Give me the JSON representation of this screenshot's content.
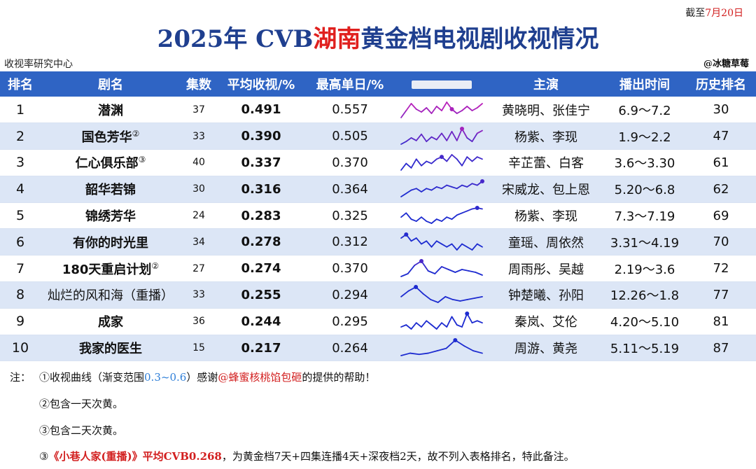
{
  "header": {
    "cutoff_prefix": "截至",
    "cutoff_date": "7月20日",
    "title_pre": "2025年 CVB",
    "title_highlight": "湖南",
    "title_post": "黄金档电视剧收视情况",
    "source": "收视率研究中心",
    "credit": "@冰糖草莓"
  },
  "table": {
    "headers": [
      "排名",
      "剧名",
      "集数",
      "平均收视/%",
      "最高单日/%",
      "",
      "主演",
      "播出时间",
      "历史排名"
    ],
    "rows": [
      {
        "rank": "1",
        "name": "潜渊",
        "sup": "",
        "episodes": "37",
        "avg": "0.491",
        "peak": "0.557",
        "cast": "黄晓明、张佳宁",
        "period": "6.9～7.2",
        "history": "30",
        "trend": [
          0.45,
          0.5,
          0.55,
          0.51,
          0.49,
          0.52,
          0.48,
          0.53,
          0.5,
          0.56,
          0.51,
          0.48,
          0.5,
          0.53,
          0.5,
          0.52,
          0.55
        ],
        "marker": 10
      },
      {
        "rank": "2",
        "name": "国色芳华",
        "sup": "②",
        "episodes": "33",
        "avg": "0.390",
        "peak": "0.505",
        "cast": "杨紫、李现",
        "period": "1.9～2.2",
        "history": "47",
        "trend": [
          0.33,
          0.36,
          0.4,
          0.37,
          0.44,
          0.36,
          0.41,
          0.38,
          0.45,
          0.37,
          0.47,
          0.37,
          0.5,
          0.4,
          0.36,
          0.45,
          0.48
        ],
        "marker": 12
      },
      {
        "rank": "3",
        "name": "仁心俱乐部",
        "sup": "③",
        "episodes": "40",
        "avg": "0.337",
        "peak": "0.370",
        "cast": "辛芷蕾、白客",
        "period": "3.6～3.30",
        "history": "61",
        "trend": [
          0.3,
          0.33,
          0.31,
          0.35,
          0.32,
          0.34,
          0.33,
          0.35,
          0.36,
          0.34,
          0.37,
          0.35,
          0.32,
          0.36,
          0.34,
          0.36,
          0.35
        ],
        "marker": 8
      },
      {
        "rank": "4",
        "name": "韶华若锦",
        "sup": "",
        "episodes": "30",
        "avg": "0.316",
        "peak": "0.364",
        "cast": "宋威龙、包上恩",
        "period": "5.20～6.8",
        "history": "62",
        "trend": [
          0.27,
          0.29,
          0.31,
          0.32,
          0.3,
          0.32,
          0.31,
          0.33,
          0.32,
          0.34,
          0.33,
          0.32,
          0.34,
          0.33,
          0.35,
          0.34,
          0.364
        ],
        "marker": 16
      },
      {
        "rank": "5",
        "name": "锦绣芳华",
        "sup": "",
        "episodes": "24",
        "avg": "0.283",
        "peak": "0.325",
        "cast": "杨紫、李现",
        "period": "7.3～7.19",
        "history": "69",
        "trend": [
          0.28,
          0.3,
          0.27,
          0.26,
          0.28,
          0.26,
          0.25,
          0.27,
          0.26,
          0.28,
          0.27,
          0.29,
          0.3,
          0.31,
          0.32,
          0.325,
          0.32
        ],
        "marker": 15
      },
      {
        "rank": "6",
        "name": "有你的时光里",
        "sup": "",
        "episodes": "34",
        "avg": "0.278",
        "peak": "0.312",
        "cast": "童瑶、周依然",
        "period": "3.31～4.19",
        "history": "70",
        "trend": [
          0.3,
          0.312,
          0.29,
          0.3,
          0.28,
          0.29,
          0.27,
          0.29,
          0.28,
          0.27,
          0.28,
          0.26,
          0.28,
          0.27,
          0.26,
          0.28,
          0.27
        ],
        "marker": 1
      },
      {
        "rank": "7",
        "name": "180天重启计划",
        "sup": "②",
        "episodes": "27",
        "avg": "0.274",
        "peak": "0.370",
        "cast": "周雨彤、吴越",
        "period": "2.19～3.6",
        "history": "72",
        "trend": [
          0.26,
          0.28,
          0.34,
          0.37,
          0.3,
          0.28,
          0.33,
          0.31,
          0.29,
          0.31,
          0.3,
          0.29,
          0.27
        ],
        "marker": 3
      },
      {
        "rank": "8",
        "name": "灿烂的风和海（重播）",
        "sup": "",
        "episodes": "33",
        "avg": "0.255",
        "peak": "0.294",
        "cast": "钟楚曦、孙阳",
        "period": "12.26～1.8",
        "history": "77",
        "trend": [
          0.26,
          0.28,
          0.294,
          0.27,
          0.25,
          0.24,
          0.26,
          0.25,
          0.245,
          0.25,
          0.255,
          0.26
        ],
        "marker": 2
      },
      {
        "rank": "9",
        "name": "成家",
        "sup": "",
        "episodes": "36",
        "avg": "0.244",
        "peak": "0.295",
        "cast": "秦岚、艾伦",
        "period": "4.20～5.10",
        "history": "81",
        "trend": [
          0.23,
          0.24,
          0.22,
          0.25,
          0.23,
          0.26,
          0.24,
          0.22,
          0.25,
          0.23,
          0.28,
          0.24,
          0.23,
          0.295,
          0.25,
          0.26,
          0.25
        ],
        "marker": 13
      },
      {
        "rank": "10",
        "name": "我家的医生",
        "sup": "",
        "episodes": "15",
        "avg": "0.217",
        "peak": "0.264",
        "cast": "周游、黄尧",
        "period": "5.11～5.19",
        "history": "87",
        "trend": [
          0.2,
          0.21,
          0.205,
          0.21,
          0.22,
          0.23,
          0.264,
          0.24,
          0.22,
          0.21
        ],
        "marker": 6
      }
    ]
  },
  "notes": {
    "label": "注：",
    "n1_pre": "①收视曲线（渐变范围",
    "n1_range": "0.3~0.6",
    "n1_mid": "）感谢",
    "n1_handle": "@蜂蜜核桃馅包砸",
    "n1_post": "的提供的帮助！",
    "n2": "②包含一天次黄。",
    "n3": "③包含二天次黄。",
    "n4_pre": "③",
    "n4_title": "《小巷人家(重播)》平均CVB0.268",
    "n4_post": "，为黄金档7天+四集连播4天+深夜档2天，故不列入表格排名，特此备注。"
  },
  "colors": {
    "header_bg": "#2f64c4",
    "title_blue": "#1f3f8f",
    "highlight_red": "#e0201e",
    "stripe": "#dce6f6",
    "curve_low": "#1d2bd0",
    "curve_high": "#e41fb4"
  }
}
